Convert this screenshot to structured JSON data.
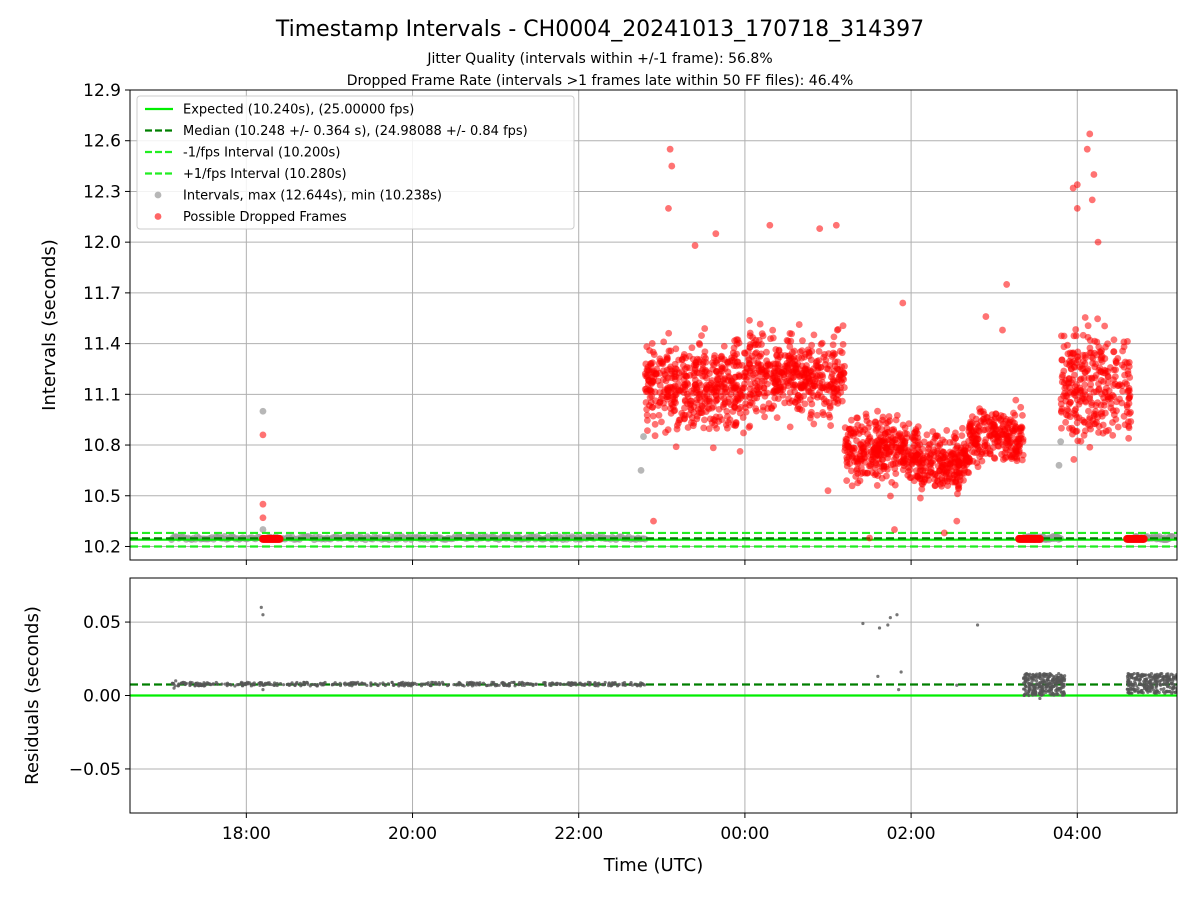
{
  "title": "Timestamp Intervals - CH0004_20241013_170718_314397",
  "subtitle_1": "Jitter Quality (intervals within +/-1 frame): 56.8%",
  "subtitle_2": "Dropped Frame Rate (intervals >1 frames late within 50 FF files): 46.4%",
  "colors": {
    "expected": "#00ee00",
    "median": "#007f00",
    "bounds": "#22ee22",
    "intervals": "#999999",
    "dropped": "#ff0000",
    "residuals": "#555555"
  },
  "chart_data": [
    {
      "type": "scatter",
      "name": "intervals",
      "ylabel": "Intervals (seconds)",
      "xlabel": "",
      "xlim_hours": [
        -7.4,
        5.2
      ],
      "ylim": [
        10.12,
        12.9
      ],
      "yticks": [
        10.2,
        10.5,
        10.8,
        11.1,
        11.4,
        11.7,
        12.0,
        12.3,
        12.6,
        12.9
      ],
      "ytick_labels": [
        "10.2",
        "10.5",
        "10.8",
        "11.1",
        "11.4",
        "11.7",
        "12.0",
        "12.3",
        "12.6",
        "12.9"
      ],
      "grid": true,
      "legend_position": "top-left",
      "hlines": [
        {
          "name": "Expected (10.240s), (25.00000 fps)",
          "y": 10.24,
          "style": "solid",
          "color": "#00ee00"
        },
        {
          "name": "Median (10.248 +/- 0.364 s), (24.98088 +/- 0.84 fps)",
          "y": 10.248,
          "style": "dashed",
          "color": "#007f00"
        },
        {
          "name": "-1/fps Interval (10.200s)",
          "y": 10.2,
          "style": "dashed",
          "color": "#22ee22"
        },
        {
          "name": "+1/fps Interval (10.280s)",
          "y": 10.28,
          "style": "dashed",
          "color": "#22ee22"
        }
      ],
      "series": [
        {
          "name": "Intervals, max (12.644s), min (10.238s)",
          "marker": "circle",
          "color": "#999999",
          "segments": [
            {
              "x_start": -6.9,
              "x_end": -1.2,
              "y_min": 10.24,
              "y_max": 10.26,
              "n": 260
            },
            {
              "x_start": 3.35,
              "x_end": 3.8,
              "y_min": 10.24,
              "y_max": 10.26,
              "n": 40
            },
            {
              "x_start": 4.7,
              "x_end": 5.15,
              "y_min": 10.24,
              "y_max": 10.26,
              "n": 40
            }
          ],
          "points": [
            {
              "x": -5.8,
              "y": 11.0
            },
            {
              "x": -5.8,
              "y": 10.3
            },
            {
              "x": -1.25,
              "y": 10.65
            },
            {
              "x": -1.22,
              "y": 10.85
            },
            {
              "x": 3.8,
              "y": 10.82
            },
            {
              "x": 3.78,
              "y": 10.68
            }
          ]
        },
        {
          "name": "Possible Dropped Frames",
          "marker": "circle",
          "color": "#ff0000",
          "clusters": [
            {
              "x_start": -1.2,
              "x_end": 0.0,
              "y_center": 11.15,
              "y_spread": 0.28,
              "n": 460
            },
            {
              "x_start": 0.0,
              "x_end": 1.2,
              "y_center": 11.2,
              "y_spread": 0.25,
              "n": 440
            },
            {
              "x_start": 1.2,
              "x_end": 2.1,
              "y_center": 10.78,
              "y_spread": 0.2,
              "n": 340
            },
            {
              "x_start": 2.1,
              "x_end": 2.7,
              "y_center": 10.7,
              "y_spread": 0.17,
              "n": 230
            },
            {
              "x_start": 2.7,
              "x_end": 3.35,
              "y_center": 10.85,
              "y_spread": 0.17,
              "n": 230
            },
            {
              "x_start": 3.8,
              "x_end": 4.65,
              "y_center": 11.15,
              "y_spread": 0.35,
              "n": 300
            }
          ],
          "baseline_groups": [
            {
              "x_start": -5.8,
              "x_end": -5.6,
              "y": 10.245,
              "n": 18
            },
            {
              "x_start": 3.3,
              "x_end": 3.55,
              "y": 10.245,
              "n": 20
            },
            {
              "x_start": 4.6,
              "x_end": 4.8,
              "y": 10.245,
              "n": 18
            }
          ],
          "points": [
            {
              "x": -5.8,
              "y": 10.86
            },
            {
              "x": -5.8,
              "y": 10.45
            },
            {
              "x": -5.8,
              "y": 10.37
            },
            {
              "x": -0.9,
              "y": 12.55
            },
            {
              "x": -0.88,
              "y": 12.45
            },
            {
              "x": -0.92,
              "y": 12.2
            },
            {
              "x": -0.6,
              "y": 11.98
            },
            {
              "x": -0.35,
              "y": 12.05
            },
            {
              "x": 0.3,
              "y": 12.1
            },
            {
              "x": 0.9,
              "y": 12.08
            },
            {
              "x": 1.1,
              "y": 12.1
            },
            {
              "x": 1.0,
              "y": 10.53
            },
            {
              "x": 1.9,
              "y": 11.64
            },
            {
              "x": 3.15,
              "y": 11.75
            },
            {
              "x": 2.9,
              "y": 11.56
            },
            {
              "x": 3.1,
              "y": 11.48
            },
            {
              "x": 4.15,
              "y": 12.64
            },
            {
              "x": 4.12,
              "y": 12.55
            },
            {
              "x": 4.2,
              "y": 12.4
            },
            {
              "x": 4.0,
              "y": 12.34
            },
            {
              "x": 3.95,
              "y": 12.32
            },
            {
              "x": 4.18,
              "y": 12.25
            },
            {
              "x": 4.0,
              "y": 12.2
            },
            {
              "x": 4.25,
              "y": 12.0
            },
            {
              "x": -1.1,
              "y": 10.35
            },
            {
              "x": -0.78,
              "y": 10.95
            },
            {
              "x": 1.5,
              "y": 10.25
            },
            {
              "x": 2.4,
              "y": 10.28
            },
            {
              "x": 2.55,
              "y": 10.35
            },
            {
              "x": 1.8,
              "y": 10.3
            }
          ]
        }
      ]
    },
    {
      "type": "scatter",
      "name": "residuals",
      "ylabel": "Residuals (seconds)",
      "xlabel": "Time (UTC)",
      "xlim_hours": [
        -7.4,
        5.2
      ],
      "ylim": [
        -0.08,
        0.08
      ],
      "yticks": [
        -0.05,
        0.0,
        0.05
      ],
      "ytick_labels": [
        "−0.05",
        "0.00",
        "0.05"
      ],
      "xticks_hours": [
        -6,
        -4,
        -2,
        0,
        2,
        4
      ],
      "xtick_labels": [
        "18:00",
        "20:00",
        "22:00",
        "00:00",
        "02:00",
        "04:00"
      ],
      "grid": true,
      "hlines": [
        {
          "y": 0.0,
          "style": "solid",
          "color": "#00ee00"
        },
        {
          "y": 0.0075,
          "style": "dashed",
          "color": "#007f00"
        }
      ],
      "series": [
        {
          "name": "residuals",
          "marker": "dot",
          "color": "#555555",
          "segments": [
            {
              "x_start": -6.9,
              "x_end": -1.2,
              "y_min": 0.0065,
              "y_max": 0.009,
              "n": 420
            },
            {
              "x_start": 3.35,
              "x_end": 3.85,
              "y_min": 0.0,
              "y_max": 0.015,
              "n": 260
            },
            {
              "x_start": 4.6,
              "x_end": 5.2,
              "y_min": 0.0015,
              "y_max": 0.015,
              "n": 260
            }
          ],
          "points": [
            {
              "x": -5.82,
              "y": 0.06
            },
            {
              "x": -5.8,
              "y": 0.055
            },
            {
              "x": -5.8,
              "y": 0.004
            },
            {
              "x": -6.85,
              "y": 0.01
            },
            {
              "x": -6.87,
              "y": 0.005
            },
            {
              "x": 1.42,
              "y": 0.049
            },
            {
              "x": 1.62,
              "y": 0.046
            },
            {
              "x": 1.72,
              "y": 0.048
            },
            {
              "x": 1.75,
              "y": 0.053
            },
            {
              "x": 1.83,
              "y": 0.055
            },
            {
              "x": 1.6,
              "y": 0.013
            },
            {
              "x": 1.88,
              "y": 0.016
            },
            {
              "x": 1.85,
              "y": 0.004
            },
            {
              "x": 2.8,
              "y": 0.048
            },
            {
              "x": 2.55,
              "y": 0.007
            },
            {
              "x": 3.55,
              "y": -0.002
            }
          ]
        }
      ]
    }
  ]
}
